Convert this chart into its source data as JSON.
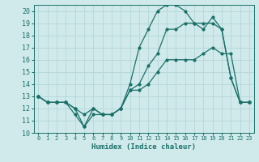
{
  "xlabel": "Humidex (Indice chaleur)",
  "xlim": [
    -0.5,
    23.5
  ],
  "ylim": [
    10,
    20.5
  ],
  "yticks": [
    10,
    11,
    12,
    13,
    14,
    15,
    16,
    17,
    18,
    19,
    20
  ],
  "xticks": [
    0,
    1,
    2,
    3,
    4,
    5,
    6,
    7,
    8,
    9,
    10,
    11,
    12,
    13,
    14,
    15,
    16,
    17,
    18,
    19,
    20,
    21,
    22,
    23
  ],
  "bg_color": "#d0eaec",
  "grid_color": "#b8d8da",
  "line_color": "#1a7068",
  "series": [
    {
      "x": [
        0,
        1,
        2,
        3,
        4,
        5,
        6,
        7,
        8,
        9,
        10,
        11,
        12,
        13,
        14,
        15,
        16,
        17,
        18,
        19,
        20,
        21,
        22,
        23
      ],
      "y": [
        13,
        12.5,
        12.5,
        12.5,
        11.5,
        10.5,
        11.5,
        11.5,
        11.5,
        12,
        13.5,
        13.5,
        14,
        15,
        16,
        16,
        16,
        16,
        16.5,
        17,
        16.5,
        16.5,
        12.5,
        12.5
      ]
    },
    {
      "x": [
        0,
        1,
        2,
        3,
        4,
        5,
        6,
        7,
        8,
        9,
        10,
        11,
        12,
        13,
        14,
        15,
        16,
        17,
        18,
        19,
        20,
        21,
        22,
        23
      ],
      "y": [
        13,
        12.5,
        12.5,
        12.5,
        12,
        11.5,
        12,
        11.5,
        11.5,
        12,
        13.5,
        14,
        15.5,
        16.5,
        18.5,
        18.5,
        19,
        19,
        18.5,
        19.5,
        18.5,
        14.5,
        12.5,
        12.5
      ]
    },
    {
      "x": [
        0,
        1,
        2,
        3,
        4,
        5,
        6,
        7,
        8,
        9,
        10,
        11,
        12,
        13,
        14,
        15,
        16,
        17,
        18,
        19,
        20,
        21,
        22,
        23
      ],
      "y": [
        13,
        12.5,
        12.5,
        12.5,
        12,
        10.5,
        12,
        11.5,
        11.5,
        12,
        14,
        17,
        18.5,
        20,
        20.5,
        20.5,
        20,
        19,
        19,
        19,
        18.5,
        14.5,
        12.5,
        12.5
      ]
    }
  ]
}
